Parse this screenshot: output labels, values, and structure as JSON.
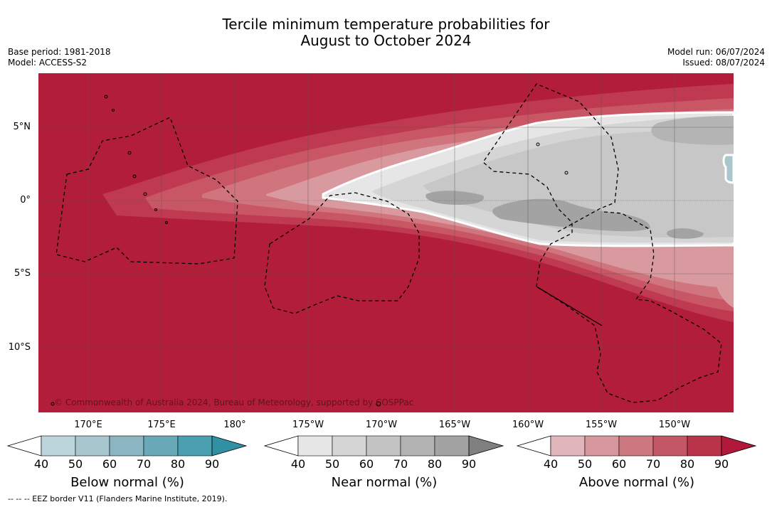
{
  "header": {
    "title_line1": "Tercile minimum temperature probabilities for",
    "title_line2": "August to October 2024",
    "base_period": "Base period: 1981-2018",
    "model": "Model: ACCESS-S2",
    "model_run": "Model run: 06/07/2024",
    "issued": "Issued: 08/07/2024"
  },
  "map": {
    "latitude_labels": [
      "5°N",
      "0°",
      "5°S",
      "10°S"
    ],
    "longitude_labels": [
      "170°E",
      "175°E",
      "180°",
      "175°W",
      "170°W",
      "165°W",
      "160°W",
      "155°W",
      "150°W"
    ],
    "copyright": "© Commonwealth of Australia 2024, Bureau of Meteorology, supported by COSPPac",
    "colors": {
      "above_90": "#b21e3a",
      "above_80": "#bf3a50",
      "above_70": "#c95664",
      "above_60": "#d0757e",
      "above_50": "#d99a9f",
      "near_40": "#e6e6e6",
      "near_50": "#d5d5d5",
      "near_60": "#c7c7c7",
      "near_70": "#b4b4b4",
      "near_80": "#a3a3a3",
      "below_50": "#a8c6cb"
    }
  },
  "legends": [
    {
      "id": "below",
      "title": "Below normal (%)",
      "ticks": [
        "40",
        "50",
        "60",
        "70",
        "80",
        "90"
      ],
      "colors": [
        "#ffffff",
        "#bcd4dc",
        "#a8c6cd",
        "#8bb5c0",
        "#6aaab8",
        "#4aa0b0",
        "#3090a4"
      ]
    },
    {
      "id": "near",
      "title": "Near normal (%)",
      "ticks": [
        "40",
        "50",
        "60",
        "70",
        "80",
        "90"
      ],
      "colors": [
        "#ffffff",
        "#e6e6e6",
        "#d5d5d5",
        "#c4c4c4",
        "#b3b3b3",
        "#a3a3a3",
        "#808080"
      ]
    },
    {
      "id": "above",
      "title": "Above normal (%)",
      "ticks": [
        "40",
        "50",
        "60",
        "70",
        "80",
        "90"
      ],
      "colors": [
        "#ffffff",
        "#e0b6bb",
        "#d7969c",
        "#cd7880",
        "#c45766",
        "#ba3449",
        "#b2183a"
      ]
    }
  ],
  "footnote": "--  --  -- EEZ border V11 (Flanders Marine Institute, 2019)."
}
